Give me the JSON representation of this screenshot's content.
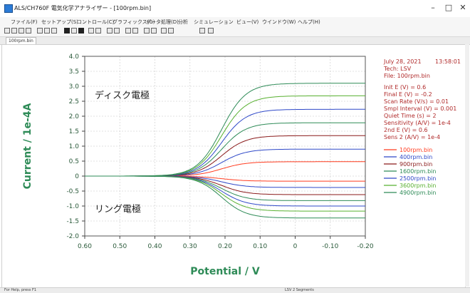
{
  "window": {
    "title": "ALS/CH760F 電気化学アナライザー - [100rpm.bin]",
    "minimize": "–",
    "maximize": "□",
    "close": "✕"
  },
  "menu": [
    "ファイル(F)",
    "セットアップ(S)",
    "コントロール(C)",
    "グラフィックス(G)",
    "データ処理(D)",
    "分析",
    "シミュレーション",
    "ビュー(V)",
    "ウインドウ(W)",
    "ヘルプ(H)"
  ],
  "document_tab": "100rpm.bin",
  "status": {
    "left": "For Help, press F1",
    "right": "LSV  2 Segments"
  },
  "overlay": {
    "disk_label": "ディスク電極",
    "ring_label": "リング電極"
  },
  "info_panel": {
    "date": "July 28, 2021",
    "time": "13:58:01",
    "tech": "Tech: LSV",
    "file": "File: 100rpm.bin",
    "params": [
      "Init E (V) = 0.6",
      "Final E (V) = -0.2",
      "Scan Rate (V/s) = 0.01",
      "Smpl Interval (V) = 0.001",
      "Quiet Time (s) = 2",
      "Sensitivity (A/V) = 1e-4",
      "2nd E (V) = 0.6",
      "Sens 2 (A/V) = 1e-4"
    ]
  },
  "chart_data": {
    "type": "line",
    "xlabel": "Potential / V",
    "ylabel": "Current / 1e-4A",
    "xlim": [
      0.6,
      -0.2
    ],
    "ylim": [
      -2.0,
      4.0
    ],
    "x_ticks": [
      "0.60",
      "0.50",
      "0.40",
      "0.30",
      "0.20",
      "0.10",
      "0",
      "-0.10",
      "-0.20"
    ],
    "y_ticks": [
      "4.0",
      "3.5",
      "3.0",
      "2.5",
      "2.0",
      "1.5",
      "1.0",
      "0.5",
      "0",
      "-0.5",
      "-1.0",
      "-1.5",
      "-2.0"
    ],
    "grid": true,
    "legend_position": "right",
    "half_wave_potential": 0.21,
    "series": [
      {
        "name": "100rpm.bin",
        "color": "#ff3b1f",
        "disk_limit": 0.48,
        "ring_limit": -0.17
      },
      {
        "name": "400rpm.bin",
        "color": "#2e48c8",
        "disk_limit": 0.9,
        "ring_limit": -0.38
      },
      {
        "name": "900rpm.bin",
        "color": "#8a1a1a",
        "disk_limit": 1.35,
        "ring_limit": -0.62
      },
      {
        "name": "1600rpm.bin",
        "color": "#2e8b57",
        "disk_limit": 1.78,
        "ring_limit": -0.82
      },
      {
        "name": "2500rpm.bin",
        "color": "#2e48c8",
        "disk_limit": 2.23,
        "ring_limit": -1.0
      },
      {
        "name": "3600rpm.bin",
        "color": "#58b030",
        "disk_limit": 2.68,
        "ring_limit": -1.17
      },
      {
        "name": "4900rpm.bin",
        "color": "#2e8b57",
        "disk_limit": 3.1,
        "ring_limit": -1.4
      }
    ]
  }
}
